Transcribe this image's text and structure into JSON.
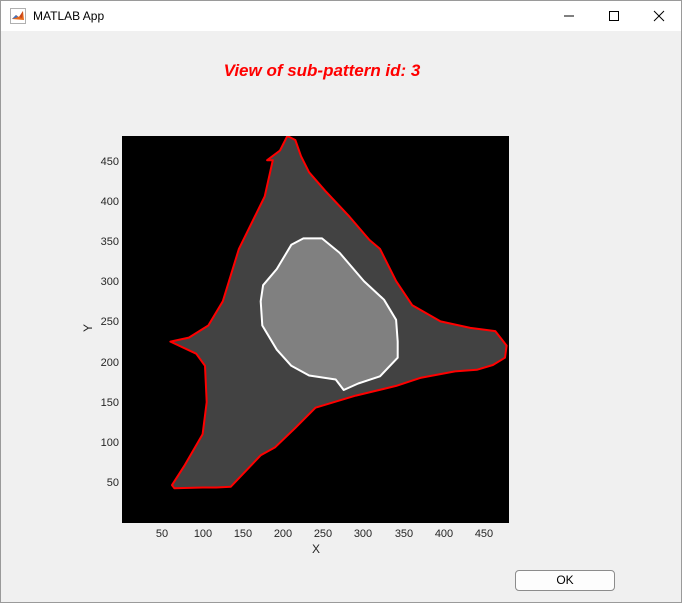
{
  "window": {
    "title": "MATLAB App",
    "controls": {
      "minimize": "minimize-icon",
      "maximize": "maximize-icon",
      "close": "close-icon"
    }
  },
  "plot": {
    "title": "View of sub-pattern id: 3",
    "title_color": "#ff0000",
    "xlabel": "X",
    "ylabel": "Y",
    "xticks": [
      "50",
      "100",
      "150",
      "200",
      "250",
      "300",
      "350",
      "400",
      "450"
    ],
    "yticks": [
      "50",
      "100",
      "150",
      "200",
      "250",
      "300",
      "350",
      "400",
      "450"
    ],
    "background_color": "#000000",
    "cell_fill": "#424242",
    "nucleus_fill": "#808080",
    "cell_outline_color": "#ff0000",
    "nucleus_outline_color": "#ffffff"
  },
  "chart_data": {
    "type": "image",
    "title": "View of sub-pattern id: 3",
    "xlabel": "X",
    "ylabel": "Y",
    "xlim": [
      0,
      480
    ],
    "ylim": [
      0,
      480
    ],
    "cell_outline": [
      [
        205,
        480
      ],
      [
        215,
        475
      ],
      [
        222,
        455
      ],
      [
        232,
        435
      ],
      [
        252,
        412
      ],
      [
        282,
        380
      ],
      [
        307,
        351
      ],
      [
        320,
        340
      ],
      [
        340,
        300
      ],
      [
        360,
        270
      ],
      [
        395,
        250
      ],
      [
        432,
        242
      ],
      [
        463,
        238
      ],
      [
        477,
        220
      ],
      [
        475,
        205
      ],
      [
        460,
        196
      ],
      [
        440,
        190
      ],
      [
        413,
        188
      ],
      [
        370,
        180
      ],
      [
        340,
        170
      ],
      [
        290,
        158
      ],
      [
        240,
        143
      ],
      [
        215,
        118
      ],
      [
        190,
        94
      ],
      [
        172,
        84
      ],
      [
        135,
        45
      ],
      [
        117,
        44
      ],
      [
        100,
        44
      ],
      [
        65,
        43
      ],
      [
        62,
        47
      ],
      [
        78,
        72
      ],
      [
        100,
        110
      ],
      [
        105,
        150
      ],
      [
        103,
        195
      ],
      [
        92,
        210
      ],
      [
        60,
        225
      ],
      [
        83,
        230
      ],
      [
        107,
        245
      ],
      [
        125,
        275
      ],
      [
        145,
        340
      ],
      [
        177,
        405
      ],
      [
        187,
        450
      ],
      [
        180,
        450
      ],
      [
        196,
        462
      ]
    ],
    "nucleus_outline": [
      [
        210,
        345
      ],
      [
        225,
        353
      ],
      [
        248,
        353
      ],
      [
        270,
        335
      ],
      [
        300,
        300
      ],
      [
        325,
        277
      ],
      [
        340,
        252
      ],
      [
        342,
        225
      ],
      [
        342,
        205
      ],
      [
        320,
        182
      ],
      [
        293,
        173
      ],
      [
        275,
        165
      ],
      [
        265,
        178
      ],
      [
        232,
        183
      ],
      [
        210,
        195
      ],
      [
        192,
        215
      ],
      [
        174,
        245
      ],
      [
        172,
        275
      ],
      [
        175,
        295
      ],
      [
        192,
        315
      ]
    ],
    "button_label": "OK"
  },
  "actions": {
    "ok_label": "OK"
  }
}
